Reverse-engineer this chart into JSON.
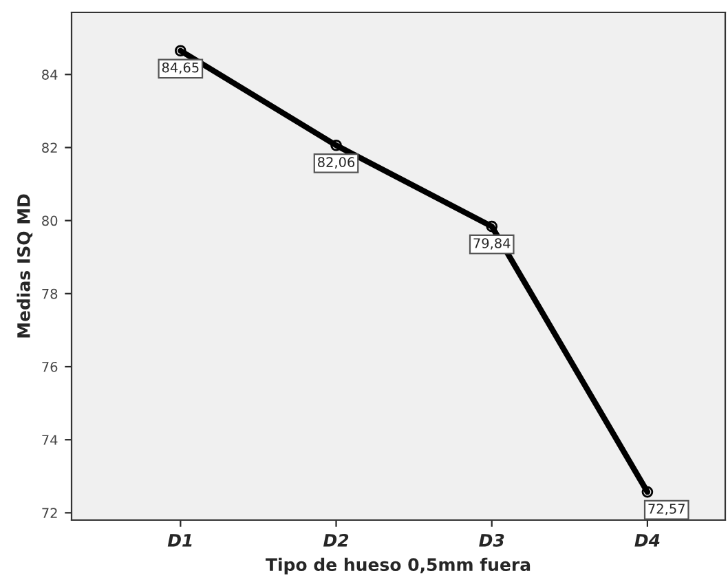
{
  "chart_data": {
    "type": "line",
    "xlabel": "Tipo de hueso 0,5mm fuera",
    "ylabel": "Medias ISQ MD",
    "categories": [
      "D1",
      "D2",
      "D3",
      "D4"
    ],
    "values": [
      84.65,
      82.06,
      79.84,
      72.57
    ],
    "value_labels": [
      "84,65",
      "82,06",
      "79,84",
      "72,57"
    ],
    "color": "#000000",
    "marker": "circle",
    "line_style": "solid",
    "ylim": [
      71.8,
      85.7
    ],
    "yticks": [
      72,
      74,
      76,
      78,
      80,
      82,
      84
    ],
    "grid": false,
    "legend": false
  }
}
